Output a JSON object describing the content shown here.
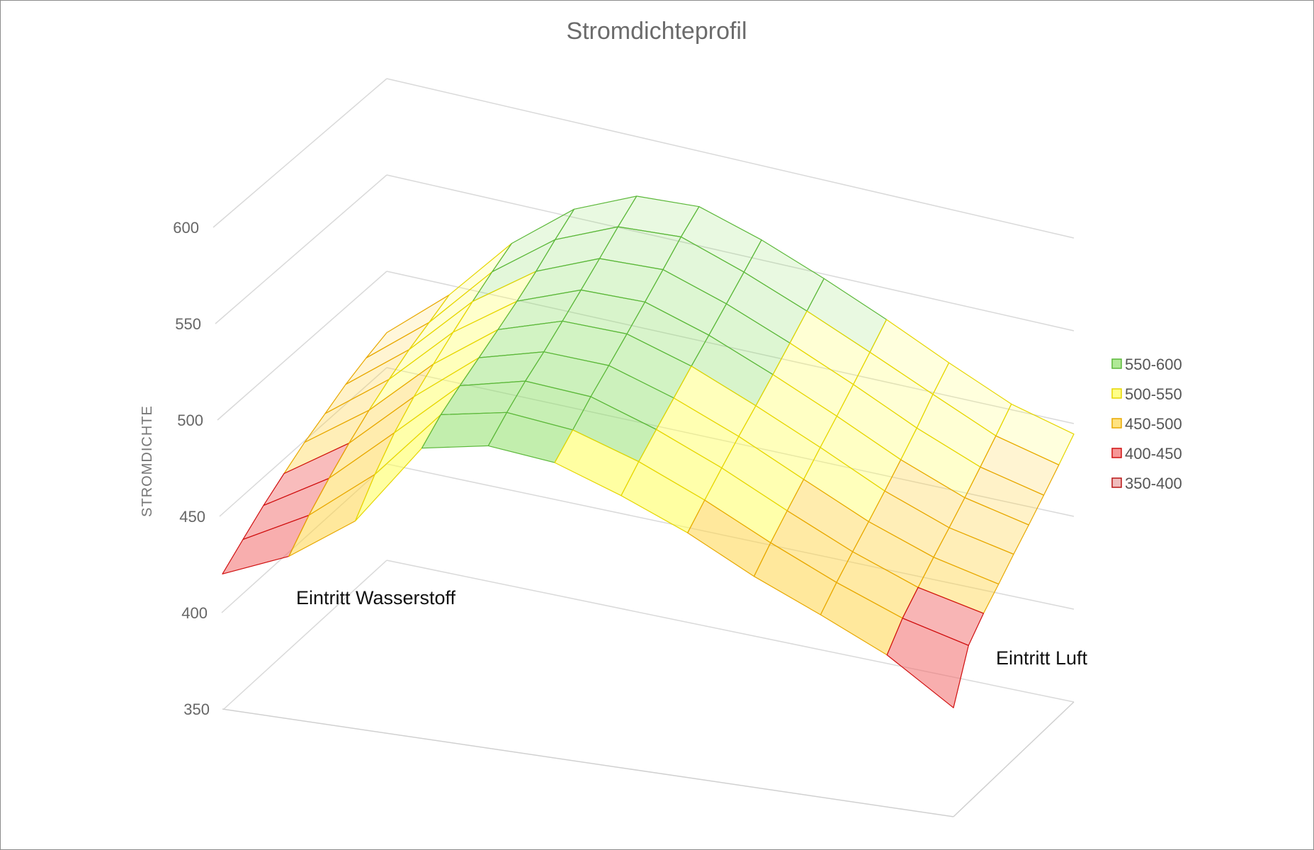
{
  "chart_data": {
    "type": "surface",
    "title": "Stromdichteprofil",
    "ylabel": "STROMDICHTE",
    "zlim": [
      350,
      600
    ],
    "z_ticks": [
      "350",
      "400",
      "450",
      "500",
      "550",
      "600"
    ],
    "grid": true,
    "legend_position": "right",
    "annotations": [
      "Eintritt Wasserstoff",
      "Eintritt Luft"
    ],
    "legend": [
      {
        "label": "550-600",
        "min": 550,
        "max": 600,
        "color": "#8fe06a",
        "stroke": "#5cb83a"
      },
      {
        "label": "500-550",
        "min": 500,
        "max": 550,
        "color": "#ffff55",
        "stroke": "#e6d600"
      },
      {
        "label": "450-500",
        "min": 450,
        "max": 500,
        "color": "#ffd54a",
        "stroke": "#e8a800"
      },
      {
        "label": "400-450",
        "min": 400,
        "max": 450,
        "color": "#f26b6b",
        "stroke": "#d01010"
      },
      {
        "label": "350-400",
        "min": 350,
        "max": 400,
        "color": "#e8a0a0",
        "stroke": "#b81515"
      }
    ],
    "values": [
      [
        409,
        420,
        430,
        438,
        445,
        450,
        455,
        458,
        460
      ],
      [
        432,
        448,
        460,
        470,
        478,
        484,
        489,
        492,
        495
      ],
      [
        470,
        490,
        505,
        515,
        522,
        528,
        533,
        537,
        540
      ],
      [
        540,
        548,
        552,
        555,
        558,
        561,
        565,
        570,
        574
      ],
      [
        552,
        560,
        566,
        570,
        575,
        580,
        585,
        590,
        594
      ],
      [
        548,
        556,
        564,
        570,
        576,
        582,
        588,
        594,
        598
      ],
      [
        530,
        540,
        548,
        555,
        562,
        568,
        574,
        580,
        586
      ],
      [
        508,
        518,
        527,
        535,
        542,
        549,
        556,
        563,
        570
      ],
      [
        480,
        492,
        502,
        511,
        520,
        528,
        536,
        544,
        552
      ],
      [
        456,
        468,
        478,
        487,
        496,
        505,
        514,
        524,
        532
      ],
      [
        430,
        447,
        458,
        468,
        477,
        486,
        495,
        504,
        513
      ],
      [
        392,
        433,
        446,
        456,
        466,
        475,
        484,
        493,
        502
      ]
    ]
  }
}
